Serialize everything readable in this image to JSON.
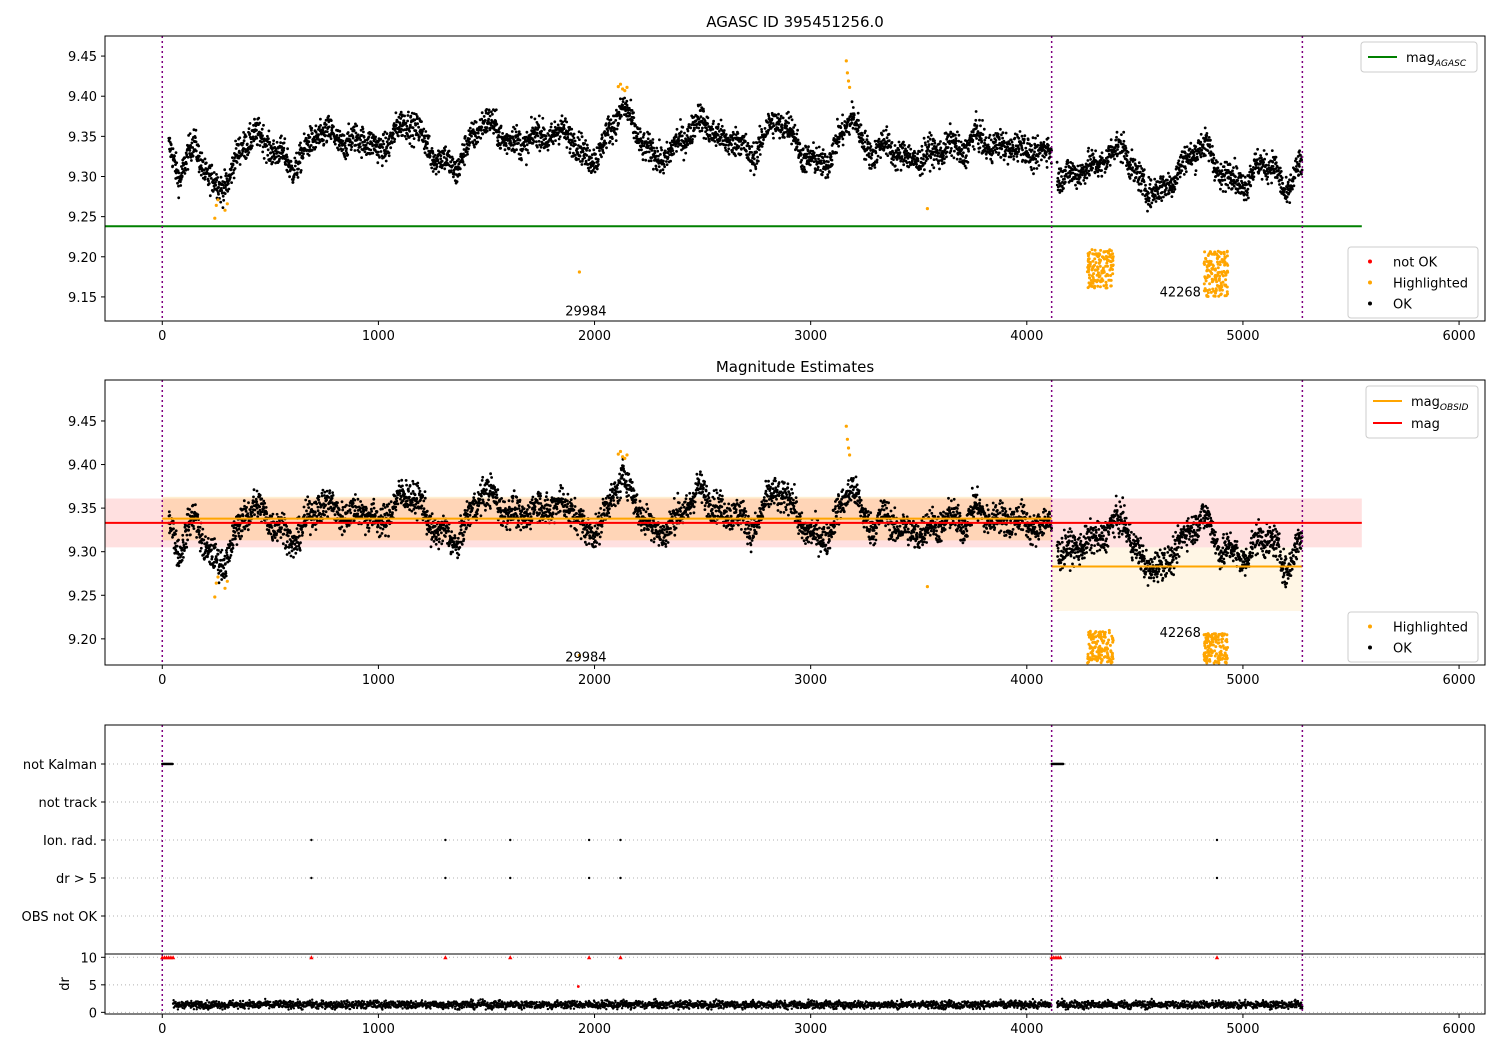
{
  "chart_data": [
    {
      "type": "scatter",
      "title": "AGASC ID 395451256.0",
      "xlim": [
        -265,
        6120
      ],
      "ylim": [
        9.12,
        9.475
      ],
      "xticks": [
        0,
        1000,
        2000,
        3000,
        4000,
        5000,
        6000
      ],
      "yticks": [
        9.15,
        9.2,
        9.25,
        9.3,
        9.35,
        9.4,
        9.45
      ],
      "vlines": [
        0,
        4115,
        5275
      ],
      "hlines": [
        {
          "name": "mag_AGASC",
          "y": 9.238,
          "x_range": [
            -265,
            5550
          ],
          "color": "#008000"
        }
      ],
      "obsid_labels": [
        {
          "text": "29984",
          "x": 1960,
          "y": 9.133
        },
        {
          "text": "42268",
          "x": 4710,
          "y": 9.157
        }
      ],
      "legends": [
        {
          "position": "top-right",
          "entries": [
            {
              "label": "mag",
              "sub": "AGASC",
              "marker": "line",
              "color": "#008000"
            }
          ]
        },
        {
          "position": "bottom-right",
          "entries": [
            {
              "label": "not OK",
              "marker": "dot",
              "color": "#ff0000"
            },
            {
              "label": "Highlighted",
              "marker": "dot",
              "color": "#ffa500"
            },
            {
              "label": "OK",
              "marker": "dot",
              "color": "#000000"
            }
          ]
        }
      ],
      "series": [
        {
          "name": "OK",
          "color": "#000000",
          "source": "ok_trend_1"
        },
        {
          "name": "Highlighted",
          "color": "#ffa500",
          "points": [
            [
              243,
              9.248
            ],
            [
              250,
              9.264
            ],
            [
              258,
              9.271
            ],
            [
              290,
              9.258
            ],
            [
              301,
              9.266
            ],
            [
              1930,
              9.181
            ],
            [
              2110,
              9.412
            ],
            [
              2120,
              9.415
            ],
            [
              2130,
              9.409
            ],
            [
              2140,
              9.407
            ],
            [
              2150,
              9.411
            ],
            [
              3165,
              9.444
            ],
            [
              3170,
              9.429
            ],
            [
              3175,
              9.419
            ],
            [
              3180,
              9.411
            ],
            [
              3540,
              9.26
            ]
          ],
          "clusters": [
            {
              "x_range": [
                4280,
                4400
              ],
              "y_range": [
                9.161,
                9.209
              ]
            },
            {
              "x_range": [
                4820,
                4930
              ],
              "y_range": [
                9.15,
                9.207
              ]
            }
          ]
        }
      ]
    },
    {
      "type": "scatter",
      "title": "Magnitude Estimates",
      "xlim": [
        -265,
        6120
      ],
      "ylim": [
        9.17,
        9.497
      ],
      "xticks": [
        0,
        1000,
        2000,
        3000,
        4000,
        5000,
        6000
      ],
      "yticks": [
        9.2,
        9.25,
        9.3,
        9.35,
        9.4,
        9.45
      ],
      "vlines": [
        0,
        4115,
        5275
      ],
      "hlines": [
        {
          "name": "mag",
          "y": 9.333,
          "x_range": [
            -265,
            5550
          ],
          "color": "#ff0000"
        },
        {
          "name": "mag_OBSID",
          "y": 9.338,
          "x_range": [
            0,
            4115
          ],
          "color": "#ffa500"
        },
        {
          "name": "mag_OBSID",
          "y": 9.283,
          "x_range": [
            4115,
            5275
          ],
          "color": "#ffa500"
        }
      ],
      "bands": [
        {
          "y_range": [
            9.305,
            9.361
          ],
          "x_range": [
            -265,
            5550
          ],
          "color": "#ff0000",
          "alpha": 0.12
        },
        {
          "y_range": [
            9.313,
            9.363
          ],
          "x_range": [
            0,
            4115
          ],
          "color": "#ffa500",
          "alpha": 0.18
        },
        {
          "y_range": [
            9.232,
            9.305
          ],
          "x_range": [
            4115,
            5275
          ],
          "color": "#ffa500",
          "alpha": 0.1
        }
      ],
      "obsid_labels": [
        {
          "text": "29984",
          "x": 1960,
          "y": 9.18
        },
        {
          "text": "42268",
          "x": 4710,
          "y": 9.208
        }
      ],
      "legends": [
        {
          "position": "top-right",
          "entries": [
            {
              "label": "mag",
              "sub": "OBSID",
              "marker": "line",
              "color": "#ffa500"
            },
            {
              "label": "mag",
              "marker": "line",
              "color": "#ff0000"
            }
          ]
        },
        {
          "position": "bottom-right",
          "entries": [
            {
              "label": "Highlighted",
              "marker": "dot",
              "color": "#ffa500"
            },
            {
              "label": "OK",
              "marker": "dot",
              "color": "#000000"
            }
          ]
        }
      ],
      "series": [
        {
          "name": "OK",
          "color": "#000000",
          "source": "ok_trend_2"
        },
        {
          "name": "Highlighted",
          "color": "#ffa500",
          "points": [
            [
              243,
              9.248
            ],
            [
              250,
              9.264
            ],
            [
              258,
              9.271
            ],
            [
              290,
              9.258
            ],
            [
              301,
              9.266
            ],
            [
              1930,
              9.181
            ],
            [
              2110,
              9.412
            ],
            [
              2120,
              9.415
            ],
            [
              2130,
              9.409
            ],
            [
              2140,
              9.407
            ],
            [
              2150,
              9.411
            ],
            [
              3165,
              9.444
            ],
            [
              3170,
              9.429
            ],
            [
              3175,
              9.419
            ],
            [
              3180,
              9.411
            ],
            [
              3540,
              9.26
            ]
          ],
          "clusters": [
            {
              "x_range": [
                4280,
                4400
              ],
              "y_range": [
                9.172,
                9.21
              ]
            },
            {
              "x_range": [
                4820,
                4930
              ],
              "y_range": [
                9.172,
                9.207
              ]
            }
          ]
        }
      ]
    },
    {
      "type": "scatter",
      "title": "",
      "xlim": [
        -265,
        6120
      ],
      "ylabel": "",
      "yticklabels": [
        "not Kalman",
        "not track",
        "Ion. rad.",
        "dr > 5",
        "OBS not OK"
      ],
      "vlines": [
        0,
        4115,
        5275
      ],
      "flags": [
        {
          "label": "not Kalman",
          "x_ranges": [
            [
              0,
              50
            ],
            [
              4115,
              4170
            ]
          ]
        },
        {
          "label": "Ion. rad.",
          "x": [
            690,
            1310,
            1610,
            1975,
            2120,
            4880
          ]
        },
        {
          "label": "dr > 5",
          "x": [
            690,
            1310,
            1610,
            1975,
            2120,
            4880
          ]
        }
      ]
    },
    {
      "type": "scatter",
      "title": "",
      "xlim": [
        -265,
        6120
      ],
      "ylim": [
        -0.3,
        10.6
      ],
      "ylabel": "dr",
      "xticks": [
        0,
        1000,
        2000,
        3000,
        4000,
        5000,
        6000
      ],
      "yticks": [
        0,
        5,
        10
      ],
      "vlines": [
        0,
        4115,
        5275
      ],
      "series": [
        {
          "name": "dr",
          "color": "#000000",
          "range": [
            0.5,
            2.7
          ],
          "x_ranges": [
            [
              50,
              4115
            ],
            [
              4140,
              5275
            ]
          ]
        },
        {
          "name": "dr clipped",
          "color": "#ff0000",
          "marker": "triangle",
          "y": 10,
          "x": [
            0,
            10,
            20,
            30,
            40,
            50,
            690,
            1310,
            1610,
            1975,
            2120,
            4115,
            4125,
            4135,
            4145,
            4155,
            4880
          ]
        },
        {
          "name": "dr red point",
          "color": "#ff0000",
          "points": [
            [
              1925,
              4.7
            ]
          ]
        }
      ]
    }
  ],
  "trend_1": [
    [
      0,
      9.34
    ],
    [
      40,
      9.33
    ],
    [
      80,
      9.3
    ],
    [
      110,
      9.32
    ],
    [
      150,
      9.34
    ],
    [
      180,
      9.32
    ],
    [
      210,
      9.3
    ],
    [
      240,
      9.29
    ],
    [
      270,
      9.285
    ],
    [
      310,
      9.3
    ],
    [
      340,
      9.32
    ],
    [
      380,
      9.34
    ],
    [
      420,
      9.355
    ],
    [
      480,
      9.34
    ],
    [
      540,
      9.33
    ],
    [
      600,
      9.31
    ],
    [
      660,
      9.33
    ],
    [
      720,
      9.355
    ],
    [
      790,
      9.35
    ],
    [
      860,
      9.34
    ],
    [
      930,
      9.35
    ],
    [
      1000,
      9.33
    ],
    [
      1080,
      9.355
    ],
    [
      1140,
      9.37
    ],
    [
      1190,
      9.355
    ],
    [
      1240,
      9.33
    ],
    [
      1300,
      9.32
    ],
    [
      1360,
      9.31
    ],
    [
      1420,
      9.34
    ],
    [
      1480,
      9.37
    ],
    [
      1540,
      9.36
    ],
    [
      1600,
      9.345
    ],
    [
      1660,
      9.34
    ],
    [
      1720,
      9.35
    ],
    [
      1780,
      9.35
    ],
    [
      1840,
      9.355
    ],
    [
      1900,
      9.35
    ],
    [
      1960,
      9.32
    ],
    [
      2020,
      9.33
    ],
    [
      2080,
      9.36
    ],
    [
      2130,
      9.39
    ],
    [
      2180,
      9.36
    ],
    [
      2230,
      9.34
    ],
    [
      2290,
      9.32
    ],
    [
      2350,
      9.33
    ],
    [
      2420,
      9.35
    ],
    [
      2480,
      9.37
    ],
    [
      2540,
      9.36
    ],
    [
      2600,
      9.34
    ],
    [
      2660,
      9.35
    ],
    [
      2720,
      9.32
    ],
    [
      2780,
      9.35
    ],
    [
      2840,
      9.37
    ],
    [
      2900,
      9.36
    ],
    [
      2960,
      9.33
    ],
    [
      3020,
      9.315
    ],
    [
      3080,
      9.32
    ],
    [
      3140,
      9.35
    ],
    [
      3190,
      9.38
    ],
    [
      3240,
      9.34
    ],
    [
      3290,
      9.33
    ],
    [
      3340,
      9.34
    ],
    [
      3400,
      9.33
    ],
    [
      3460,
      9.32
    ],
    [
      3520,
      9.325
    ],
    [
      3580,
      9.33
    ],
    [
      3640,
      9.34
    ],
    [
      3700,
      9.33
    ],
    [
      3760,
      9.35
    ],
    [
      3820,
      9.34
    ],
    [
      3880,
      9.335
    ],
    [
      3940,
      9.34
    ],
    [
      4000,
      9.33
    ],
    [
      4060,
      9.33
    ],
    [
      4115,
      9.33
    ],
    [
      4150,
      9.3
    ],
    [
      4200,
      9.3
    ],
    [
      4250,
      9.31
    ],
    [
      4300,
      9.31
    ],
    [
      4350,
      9.32
    ],
    [
      4400,
      9.33
    ],
    [
      4450,
      9.34
    ],
    [
      4500,
      9.3
    ],
    [
      4560,
      9.285
    ],
    [
      4620,
      9.28
    ],
    [
      4680,
      9.3
    ],
    [
      4740,
      9.32
    ],
    [
      4800,
      9.34
    ],
    [
      4850,
      9.33
    ],
    [
      4900,
      9.3
    ],
    [
      4960,
      9.3
    ],
    [
      5020,
      9.29
    ],
    [
      5080,
      9.32
    ],
    [
      5140,
      9.31
    ],
    [
      5200,
      9.28
    ],
    [
      5260,
      9.31
    ]
  ],
  "trend_2": [
    [
      0,
      9.34
    ],
    [
      40,
      9.33
    ],
    [
      80,
      9.3
    ],
    [
      110,
      9.32
    ],
    [
      150,
      9.34
    ],
    [
      180,
      9.32
    ],
    [
      210,
      9.3
    ],
    [
      240,
      9.29
    ],
    [
      270,
      9.285
    ],
    [
      310,
      9.3
    ],
    [
      340,
      9.32
    ],
    [
      380,
      9.34
    ],
    [
      420,
      9.355
    ],
    [
      480,
      9.34
    ],
    [
      540,
      9.33
    ],
    [
      600,
      9.31
    ],
    [
      660,
      9.33
    ],
    [
      720,
      9.355
    ],
    [
      790,
      9.35
    ],
    [
      860,
      9.34
    ],
    [
      930,
      9.35
    ],
    [
      1000,
      9.33
    ],
    [
      1080,
      9.355
    ],
    [
      1140,
      9.37
    ],
    [
      1190,
      9.355
    ],
    [
      1240,
      9.33
    ],
    [
      1300,
      9.32
    ],
    [
      1360,
      9.31
    ],
    [
      1420,
      9.34
    ],
    [
      1480,
      9.37
    ],
    [
      1540,
      9.36
    ],
    [
      1600,
      9.345
    ],
    [
      1660,
      9.34
    ],
    [
      1720,
      9.35
    ],
    [
      1780,
      9.35
    ],
    [
      1840,
      9.355
    ],
    [
      1900,
      9.35
    ],
    [
      1960,
      9.32
    ],
    [
      2020,
      9.33
    ],
    [
      2080,
      9.36
    ],
    [
      2130,
      9.39
    ],
    [
      2180,
      9.36
    ],
    [
      2230,
      9.34
    ],
    [
      2290,
      9.32
    ],
    [
      2350,
      9.33
    ],
    [
      2420,
      9.35
    ],
    [
      2480,
      9.37
    ],
    [
      2540,
      9.36
    ],
    [
      2600,
      9.34
    ],
    [
      2660,
      9.35
    ],
    [
      2720,
      9.32
    ],
    [
      2780,
      9.35
    ],
    [
      2840,
      9.37
    ],
    [
      2900,
      9.36
    ],
    [
      2960,
      9.33
    ],
    [
      3020,
      9.315
    ],
    [
      3080,
      9.32
    ],
    [
      3140,
      9.35
    ],
    [
      3190,
      9.38
    ],
    [
      3240,
      9.34
    ],
    [
      3290,
      9.33
    ],
    [
      3340,
      9.34
    ],
    [
      3400,
      9.33
    ],
    [
      3460,
      9.32
    ],
    [
      3520,
      9.325
    ],
    [
      3580,
      9.33
    ],
    [
      3640,
      9.34
    ],
    [
      3700,
      9.33
    ],
    [
      3760,
      9.35
    ],
    [
      3820,
      9.34
    ],
    [
      3880,
      9.335
    ],
    [
      3940,
      9.34
    ],
    [
      4000,
      9.33
    ],
    [
      4060,
      9.33
    ],
    [
      4115,
      9.33
    ],
    [
      4150,
      9.3
    ],
    [
      4200,
      9.3
    ],
    [
      4250,
      9.31
    ],
    [
      4300,
      9.31
    ],
    [
      4350,
      9.32
    ],
    [
      4400,
      9.33
    ],
    [
      4450,
      9.34
    ],
    [
      4500,
      9.3
    ],
    [
      4560,
      9.285
    ],
    [
      4620,
      9.28
    ],
    [
      4680,
      9.3
    ],
    [
      4740,
      9.32
    ],
    [
      4800,
      9.34
    ],
    [
      4850,
      9.33
    ],
    [
      4900,
      9.3
    ],
    [
      4960,
      9.3
    ],
    [
      5020,
      9.29
    ],
    [
      5080,
      9.32
    ],
    [
      5140,
      9.31
    ],
    [
      5200,
      9.28
    ],
    [
      5260,
      9.31
    ]
  ]
}
